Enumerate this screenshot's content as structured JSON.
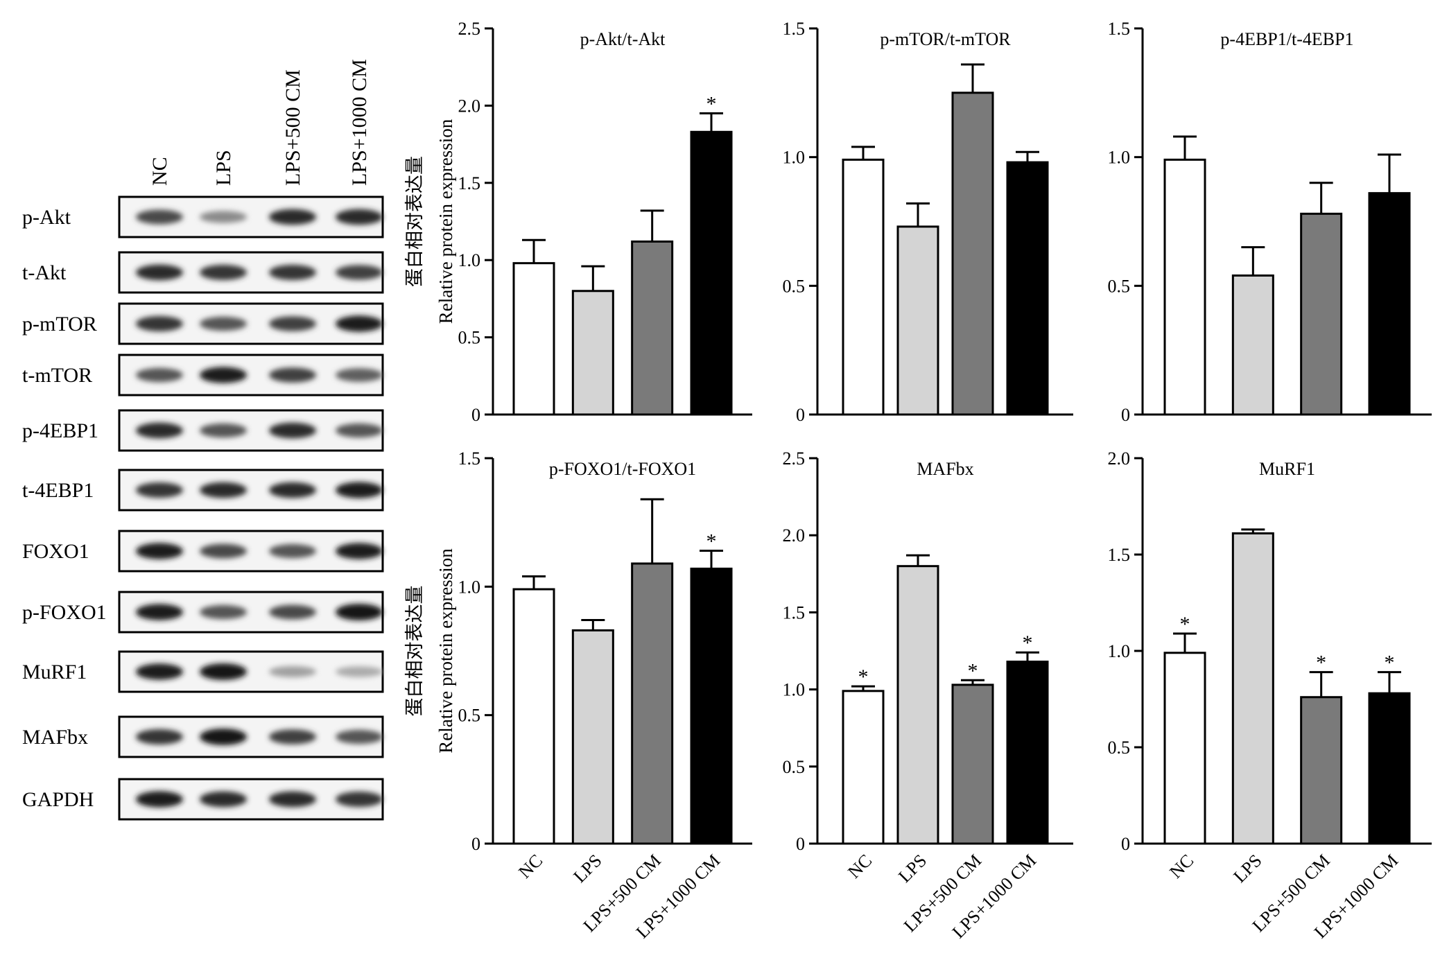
{
  "western_blot": {
    "lanes": [
      "NC",
      "LPS",
      "LPS+500 CM",
      "LPS+1000 CM"
    ],
    "rows": [
      {
        "label": "p-Akt",
        "intensity": [
          0.75,
          0.45,
          0.9,
          0.9
        ]
      },
      {
        "label": "t-Akt",
        "intensity": [
          0.9,
          0.85,
          0.85,
          0.8
        ]
      },
      {
        "label": "p-mTOR",
        "intensity": [
          0.85,
          0.7,
          0.8,
          0.95
        ]
      },
      {
        "label": "t-mTOR",
        "intensity": [
          0.7,
          0.95,
          0.8,
          0.65
        ]
      },
      {
        "label": "p-4EBP1",
        "intensity": [
          0.9,
          0.7,
          0.9,
          0.7
        ]
      },
      {
        "label": "t-4EBP1",
        "intensity": [
          0.85,
          0.9,
          0.9,
          0.95
        ]
      },
      {
        "label": "FOXO1",
        "intensity": [
          0.95,
          0.75,
          0.7,
          0.95
        ]
      },
      {
        "label": "p-FOXO1",
        "intensity": [
          0.95,
          0.7,
          0.75,
          1.0
        ]
      },
      {
        "label": "MuRF1",
        "intensity": [
          0.95,
          1.0,
          0.35,
          0.3
        ]
      },
      {
        "label": "MAFbx",
        "intensity": [
          0.85,
          1.0,
          0.8,
          0.7
        ]
      },
      {
        "label": "GAPDH",
        "intensity": [
          0.95,
          0.9,
          0.9,
          0.85
        ]
      }
    ]
  },
  "y_axis_label_cn": "蛋白相对表达量",
  "y_axis_label_en": "Relative protein expression",
  "bar_colors": [
    "#ffffff",
    "#d4d4d4",
    "#7a7a7a",
    "#000000"
  ],
  "chart_data": [
    {
      "type": "bar",
      "title": "p-Akt/t-Akt",
      "categories": [
        "NC",
        "LPS",
        "LPS+500 CM",
        "LPS+1000 CM"
      ],
      "values": [
        0.98,
        0.8,
        1.12,
        1.83
      ],
      "errors": [
        0.15,
        0.16,
        0.2,
        0.12
      ],
      "significant": [
        false,
        false,
        false,
        true
      ],
      "ylim": [
        0,
        2.5
      ],
      "yticks": [
        "0",
        "0.5",
        "1.0",
        "1.5",
        "2.0",
        "2.5"
      ],
      "ylabel": "Relative protein expression"
    },
    {
      "type": "bar",
      "title": "p-mTOR/t-mTOR",
      "categories": [
        "NC",
        "LPS",
        "LPS+500 CM",
        "LPS+1000 CM"
      ],
      "values": [
        0.99,
        0.73,
        1.25,
        0.98
      ],
      "errors": [
        0.05,
        0.09,
        0.11,
        0.04
      ],
      "significant": [
        false,
        false,
        false,
        false
      ],
      "ylim": [
        0,
        1.5
      ],
      "yticks": [
        "0",
        "0.5",
        "1.0",
        "1.5"
      ]
    },
    {
      "type": "bar",
      "title": "p-4EBP1/t-4EBP1",
      "categories": [
        "NC",
        "LPS",
        "LPS+500 CM",
        "LPS+1000 CM"
      ],
      "values": [
        0.99,
        0.54,
        0.78,
        0.86
      ],
      "errors": [
        0.09,
        0.11,
        0.12,
        0.15
      ],
      "significant": [
        false,
        false,
        false,
        false
      ],
      "ylim": [
        0,
        1.5
      ],
      "yticks": [
        "0",
        "0.5",
        "1.0",
        "1.5"
      ]
    },
    {
      "type": "bar",
      "title": "p-FOXO1/t-FOXO1",
      "categories": [
        "NC",
        "LPS",
        "LPS+500 CM",
        "LPS+1000 CM"
      ],
      "values": [
        0.99,
        0.83,
        1.09,
        1.07
      ],
      "errors": [
        0.05,
        0.04,
        0.25,
        0.07
      ],
      "significant": [
        false,
        false,
        false,
        true
      ],
      "ylim": [
        0,
        1.5
      ],
      "yticks": [
        "0",
        "0.5",
        "1.0",
        "1.5"
      ],
      "ylabel": "Relative protein expression"
    },
    {
      "type": "bar",
      "title": "MAFbx",
      "categories": [
        "NC",
        "LPS",
        "LPS+500 CM",
        "LPS+1000 CM"
      ],
      "values": [
        0.99,
        1.8,
        1.03,
        1.18
      ],
      "errors": [
        0.03,
        0.07,
        0.03,
        0.06
      ],
      "significant": [
        true,
        false,
        true,
        true
      ],
      "ylim": [
        0,
        2.5
      ],
      "yticks": [
        "0",
        "0.5",
        "1.0",
        "1.5",
        "2.0",
        "2.5"
      ]
    },
    {
      "type": "bar",
      "title": "MuRF1",
      "categories": [
        "NC",
        "LPS",
        "LPS+500 CM",
        "LPS+1000 CM"
      ],
      "values": [
        0.99,
        1.61,
        0.76,
        0.78
      ],
      "errors": [
        0.1,
        0.02,
        0.13,
        0.11
      ],
      "significant": [
        true,
        false,
        true,
        true
      ],
      "ylim": [
        0,
        2.0
      ],
      "yticks": [
        "0",
        "0.5",
        "1.0",
        "1.5",
        "2.0"
      ]
    }
  ]
}
